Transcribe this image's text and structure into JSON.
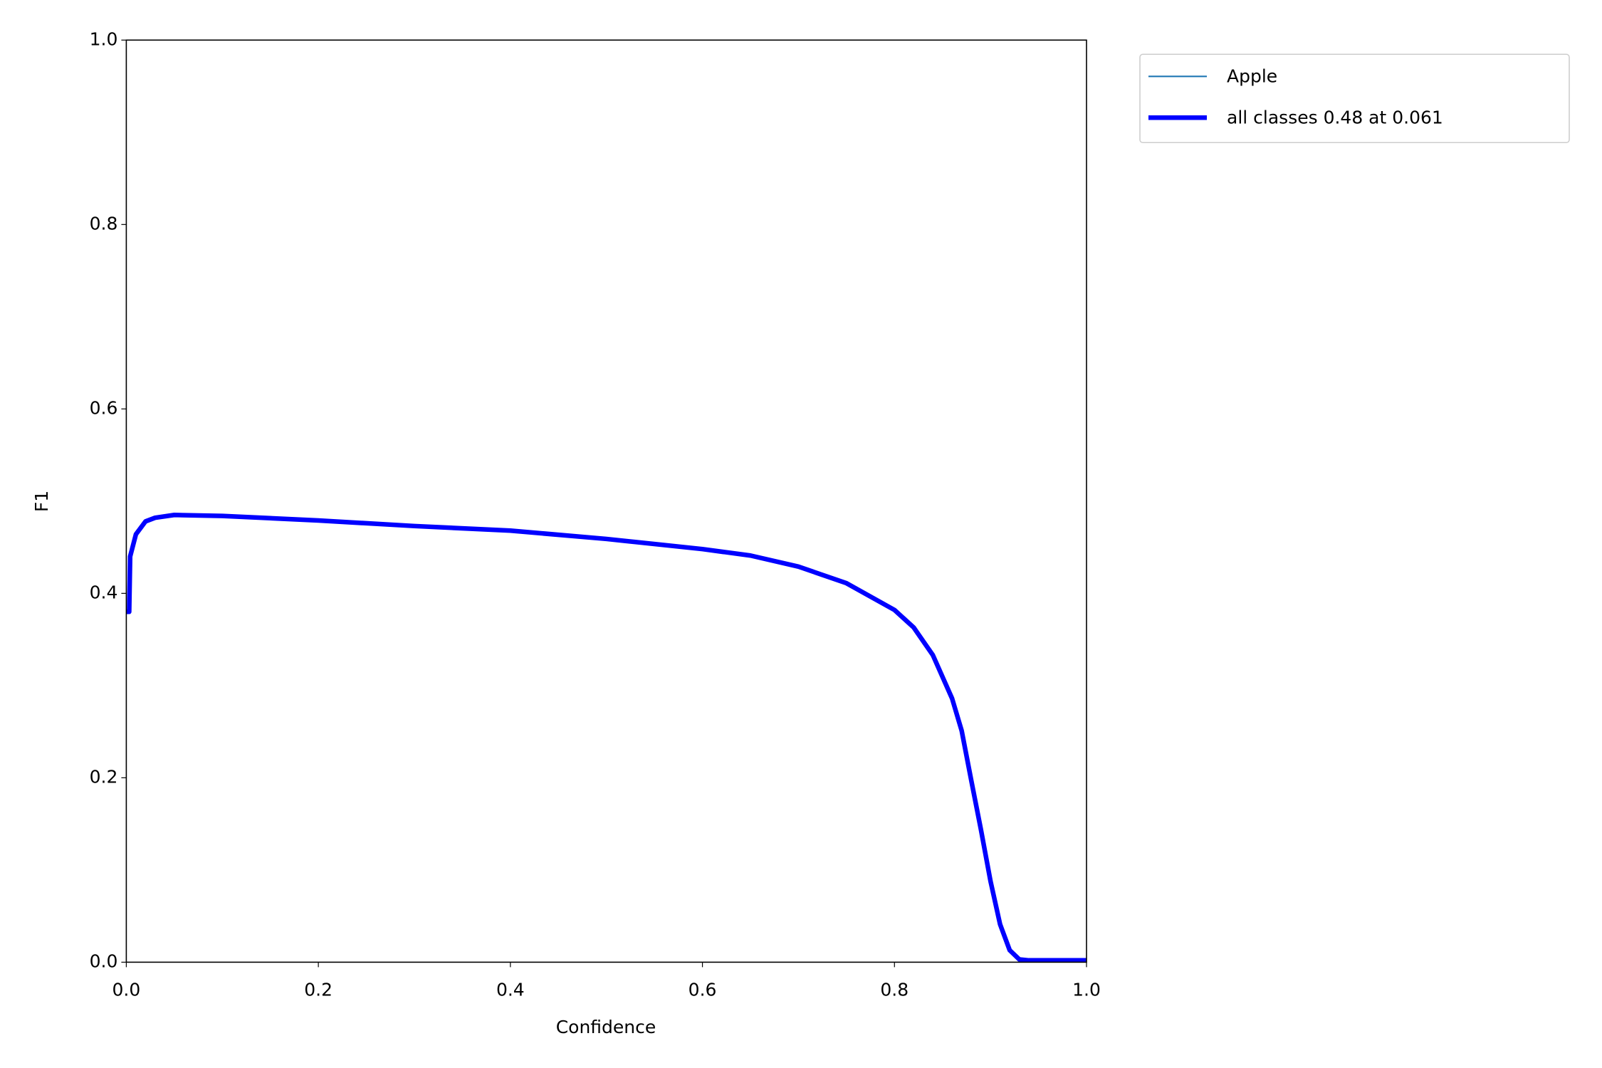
{
  "chart_data": {
    "type": "line",
    "xlabel": "Confidence",
    "ylabel": "F1",
    "x": [
      0,
      0.003,
      0.004,
      0.01,
      0.02,
      0.03,
      0.05,
      0.1,
      0.2,
      0.3,
      0.4,
      0.5,
      0.6,
      0.65,
      0.7,
      0.75,
      0.8,
      0.82,
      0.84,
      0.86,
      0.87,
      0.88,
      0.89,
      0.9,
      0.91,
      0.92,
      0.93,
      0.94,
      1.0
    ],
    "series": [
      {
        "name": "Apple",
        "color": "#1f77b4",
        "values": [
          0.38,
          0.38,
          0.44,
          0.464,
          0.478,
          0.482,
          0.485,
          0.484,
          0.479,
          0.473,
          0.468,
          0.459,
          0.448,
          0.441,
          0.429,
          0.411,
          0.382,
          0.363,
          0.333,
          0.286,
          0.251,
          0.197,
          0.144,
          0.088,
          0.041,
          0.013,
          0.003,
          0.002,
          0.002
        ]
      },
      {
        "name": "all classes 0.48 at 0.061",
        "color": "#0000ff",
        "values": [
          0.38,
          0.38,
          0.44,
          0.464,
          0.478,
          0.482,
          0.485,
          0.484,
          0.479,
          0.473,
          0.468,
          0.459,
          0.448,
          0.441,
          0.429,
          0.411,
          0.382,
          0.363,
          0.333,
          0.286,
          0.251,
          0.197,
          0.144,
          0.088,
          0.041,
          0.013,
          0.003,
          0.002,
          0.002
        ]
      }
    ],
    "xlim": [
      0,
      1
    ],
    "ylim": [
      0,
      1
    ],
    "xticks": [
      {
        "value": 0,
        "label": "0.0"
      },
      0.2,
      0.4,
      0.6,
      0.8,
      {
        "value": 1,
        "label": "1.0"
      }
    ],
    "yticks": [
      {
        "value": 0,
        "label": "0.0"
      },
      0.2,
      0.4,
      0.6,
      0.8,
      {
        "value": 1,
        "label": "1.0"
      }
    ],
    "grid": false,
    "legend": "outside-upper-right"
  }
}
